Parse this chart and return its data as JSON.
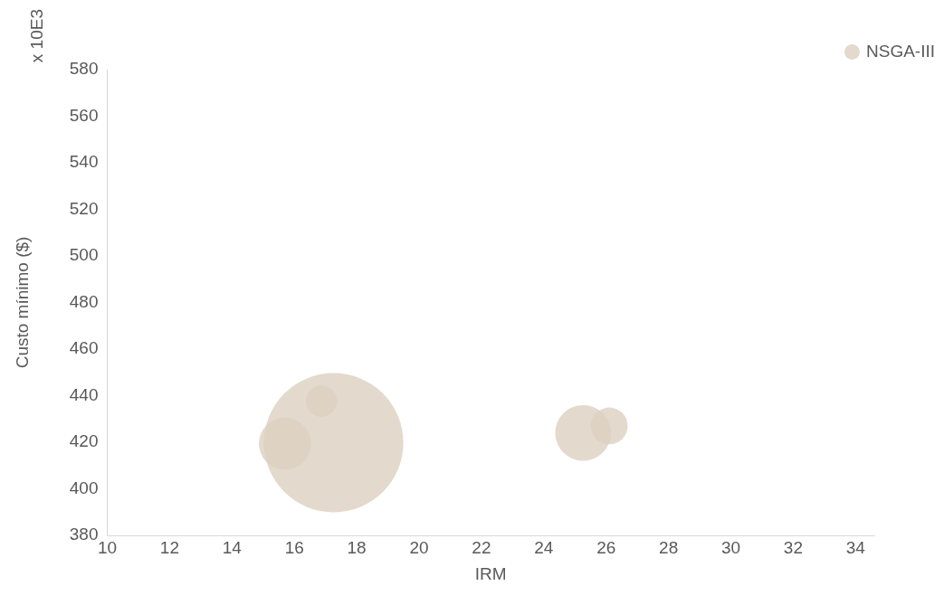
{
  "chart_data": {
    "type": "bubble",
    "xlabel": "IRM",
    "ylabel": "Custo mínimo ($)",
    "annotations": [
      "x 10E3"
    ],
    "xlim": [
      10,
      34.6
    ],
    "xticks": [
      10,
      12,
      14,
      16,
      18,
      20,
      22,
      24,
      26,
      28,
      30,
      32,
      34
    ],
    "ylim": [
      380,
      580
    ],
    "yticks": [
      380,
      400,
      420,
      440,
      460,
      480,
      500,
      520,
      540,
      560,
      580
    ],
    "grid": false,
    "legend": "top right",
    "series": [
      {
        "name": "NSGA-III",
        "color": "#dcd0c0",
        "x": [
          15.7,
          16.87,
          17.26,
          25.26,
          26.1
        ],
        "values": [
          419.4,
          437.6,
          419.8,
          424,
          427
        ],
        "sizes": [
          0.14,
          0.05,
          1,
          0.16,
          0.07
        ]
      }
    ]
  }
}
